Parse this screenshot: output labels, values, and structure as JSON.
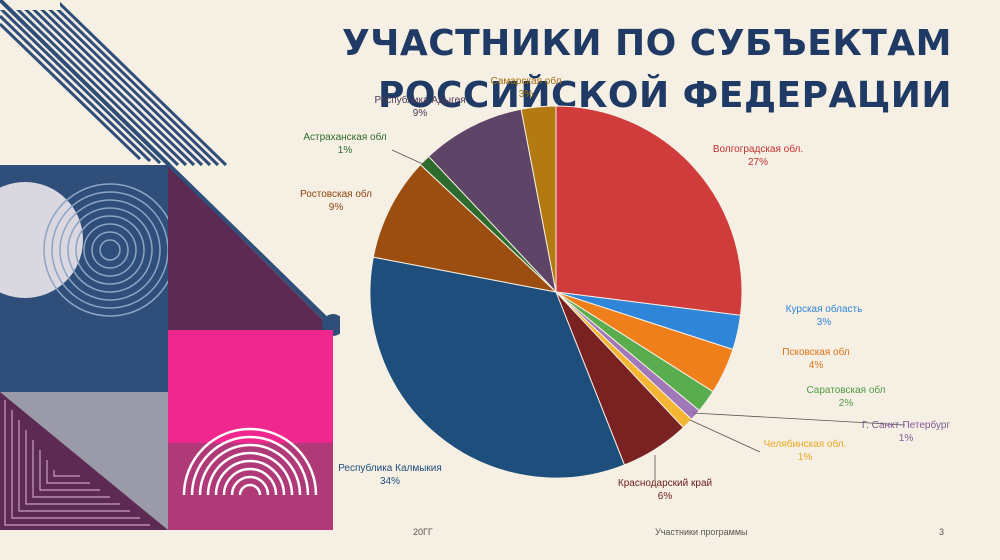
{
  "slide": {
    "title": "УЧАСТНИКИ ПО СУБЪЕКТАМ РОССИЙСКОЙ ФЕДЕРАЦИИ",
    "footer_left": "20ГГ",
    "footer_center": "Участники программы",
    "page_number": "3"
  },
  "colors": {
    "background": "#f6efe3",
    "title": "#1f3a64",
    "deco_navy": "#2f4f7a",
    "deco_plum": "#5c2a52",
    "deco_pink": "#f0278e",
    "deco_magenta": "#b03a78",
    "deco_gray": "#9a9aa8"
  },
  "chart_data": {
    "type": "pie",
    "title": "",
    "start": "top",
    "direction": "clockwise",
    "slices": [
      {
        "label": "Волгоградская обл.",
        "value": 27,
        "display": "27%",
        "color": "#d03b3b"
      },
      {
        "label": "Курская область",
        "value": 3,
        "display": "3%",
        "color": "#2f86d8"
      },
      {
        "label": "Псковская обл",
        "value": 4,
        "display": "4%",
        "color": "#ef7f1a"
      },
      {
        "label": "Саратовская обл",
        "value": 2,
        "display": "2%",
        "color": "#5aad4e"
      },
      {
        "label": "Г. Санкт-Петербург",
        "value": 1,
        "display": "1%",
        "color": "#a077b8"
      },
      {
        "label": "Челябинская обл.",
        "value": 1,
        "display": "1%",
        "color": "#f3b532"
      },
      {
        "label": "Краснодарский край",
        "value": 6,
        "display": "6%",
        "color": "#7a2121"
      },
      {
        "label": "Республика Калмыкия",
        "value": 34,
        "display": "34%",
        "color": "#1d4e7c"
      },
      {
        "label": "Ростовская обл",
        "value": 9,
        "display": "9%",
        "color": "#9c4e10"
      },
      {
        "label": "Астраханская обл",
        "value": 1,
        "display": "1%",
        "color": "#2e6b2f"
      },
      {
        "label": "Республика Адыгея",
        "value": 9,
        "display": "9%",
        "color": "#5e4466"
      },
      {
        "label": "Самарская обл",
        "value": 3,
        "display": "3%",
        "color": "#b27a10"
      }
    ],
    "label_colors": {
      "Волгоградская обл.": "#c03030",
      "Курская область": "#2f86d8",
      "Псковская обл": "#e0731a",
      "Саратовская обл": "#4f9c45",
      "Г. Санкт-Петербург": "#7d5a93",
      "Челябинская обл.": "#e8a820",
      "Краснодарский край": "#6b1d1d",
      "Республика Калмыкия": "#1d4e7c",
      "Ростовская обл": "#8c4510",
      "Астраханская обл": "#2e6b2f",
      "Республика Адыгея": "#4e3a58",
      "Самарская обл": "#a06d10"
    }
  }
}
